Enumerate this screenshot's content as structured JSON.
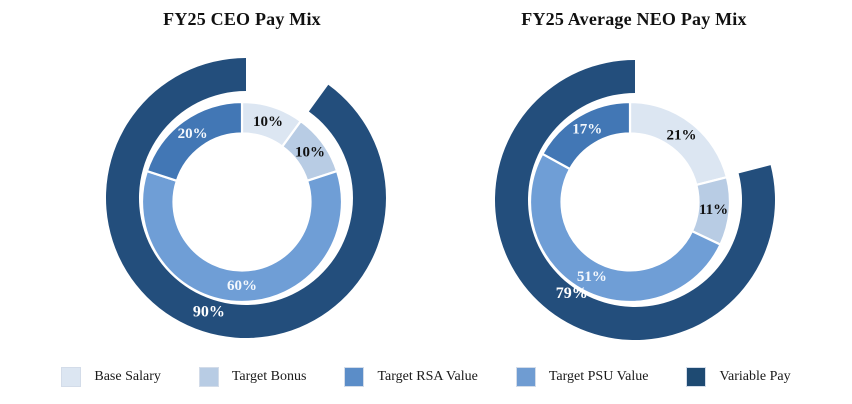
{
  "chart_data": [
    {
      "type": "donut",
      "title": "FY25 CEO Pay Mix",
      "legend_position": "bottom",
      "inner_ring": [
        {
          "series": "Base Salary",
          "value": 10,
          "display": "10%",
          "color": "#dce6f2",
          "text_color": "#111111"
        },
        {
          "series": "Target Bonus",
          "value": 10,
          "display": "10%",
          "color": "#b8cce4",
          "text_color": "#111111"
        },
        {
          "series": "Target PSU Value",
          "value": 60,
          "display": "60%",
          "color": "#6f9ed6",
          "text_color": "#f4f8fd"
        },
        {
          "series": "Target RSA Value",
          "value": 20,
          "display": "20%",
          "color": "#4277b5",
          "text_color": "#f4f8fd"
        }
      ],
      "outer_ring": {
        "series": "Variable Pay",
        "value": 90,
        "display": "90%",
        "gap_percent": 10,
        "color": "#234e7c",
        "text_color": "#ffffff",
        "label_angle": 198,
        "label_r": 120,
        "explode_dx": 4,
        "explode_dy": -4
      }
    },
    {
      "type": "donut",
      "title": "FY25 Average NEO Pay Mix",
      "legend_position": "bottom",
      "inner_ring": [
        {
          "series": "Base Salary",
          "value": 21,
          "display": "21%",
          "color": "#dce6f2",
          "text_color": "#111111"
        },
        {
          "series": "Target Bonus",
          "value": 11,
          "display": "11%",
          "color": "#b8cce4",
          "text_color": "#111111"
        },
        {
          "series": "Target PSU Value",
          "value": 51,
          "display": "51%",
          "color": "#6f9ed6",
          "text_color": "#f4f8fd"
        },
        {
          "series": "Target RSA Value",
          "value": 17,
          "display": "17%",
          "color": "#4277b5",
          "text_color": "#f4f8fd"
        }
      ],
      "outer_ring": {
        "series": "Variable Pay",
        "value": 79,
        "display": "79%",
        "gap_percent": 21,
        "color": "#234e7c",
        "text_color": "#ffffff",
        "label_angle": 214,
        "label_r": 113,
        "explode_dx": 5,
        "explode_dy": -2
      }
    }
  ],
  "legend": {
    "items": [
      {
        "label": "Base Salary",
        "color": "#dce6f2"
      },
      {
        "label": "Target Bonus",
        "color": "#b8cce4"
      },
      {
        "label": "Target RSA Value",
        "color": "#5b8dc8"
      },
      {
        "label": "Target PSU Value",
        "color": "#6f9cd2"
      },
      {
        "label": "Variable Pay",
        "color": "#1e4a72"
      }
    ]
  }
}
